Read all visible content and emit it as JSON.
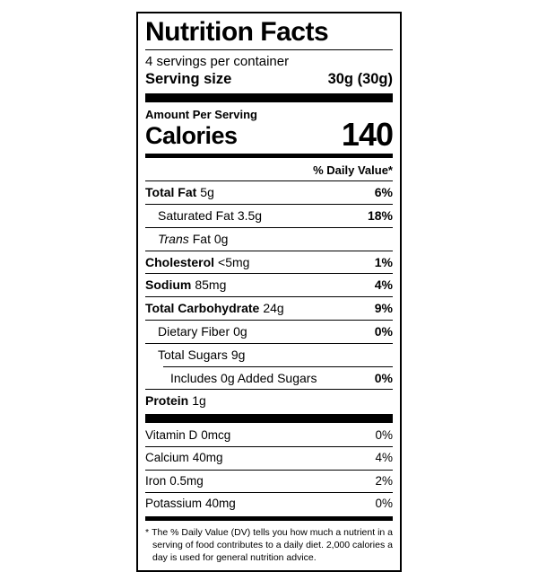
{
  "label": {
    "title": "Nutrition Facts",
    "servings_per_container": "4 servings per container",
    "serving_size": {
      "label": "Serving size",
      "value": "30g (30g)"
    },
    "amount_per_serving": "Amount Per Serving",
    "calories": {
      "label": "Calories",
      "value": "140"
    },
    "daily_value_header": "% Daily Value*",
    "nutrients": [
      {
        "name": "Total Fat",
        "amount": "5g",
        "dv": "6%"
      },
      {
        "name": "Saturated Fat",
        "amount": "3.5g",
        "dv": "18%"
      },
      {
        "name": "Trans",
        "amount": "Fat 0g",
        "dv": ""
      },
      {
        "name": "Cholesterol",
        "amount": "<5mg",
        "dv": "1%"
      },
      {
        "name": "Sodium",
        "amount": "85mg",
        "dv": "4%"
      },
      {
        "name": "Total Carbohydrate",
        "amount": "24g",
        "dv": "9%"
      },
      {
        "name": "Dietary Fiber",
        "amount": "0g",
        "dv": "0%"
      },
      {
        "name": "Total Sugars",
        "amount": "9g",
        "dv": ""
      },
      {
        "name": "Includes 0g Added Sugars",
        "amount": "",
        "dv": "0%"
      },
      {
        "name": "Protein",
        "amount": "1g",
        "dv": ""
      }
    ],
    "vitamins": [
      {
        "name": "Vitamin D",
        "amount": "0mcg",
        "dv": "0%"
      },
      {
        "name": "Calcium",
        "amount": "40mg",
        "dv": "4%"
      },
      {
        "name": "Iron",
        "amount": "0.5mg",
        "dv": "2%"
      },
      {
        "name": "Potassium",
        "amount": "40mg",
        "dv": "0%"
      }
    ],
    "footnote_marker": "*",
    "footnote": "The % Daily Value (DV) tells you how much a nutrient in a serving of food contributes to a daily diet. 2,000 calories a day is used for general nutrition advice.",
    "colors": {
      "text": "#000000",
      "background": "#ffffff"
    }
  }
}
